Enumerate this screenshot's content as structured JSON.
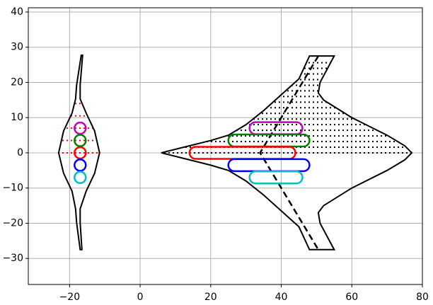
{
  "chart_data": {
    "type": "shape",
    "xlim": [
      -31.7,
      80
    ],
    "ylim": [
      -37.4,
      41.2
    ],
    "xticks": [
      {
        "value": -20,
        "label": "−20"
      },
      0,
      20,
      40,
      60,
      80
    ],
    "yticks": [
      {
        "value": -30,
        "label": "−30"
      },
      {
        "value": -20,
        "label": "−20"
      },
      {
        "value": -10,
        "label": "−10"
      },
      0,
      10,
      20,
      30,
      40
    ],
    "grid": true,
    "polygons": [
      {
        "color": "#000000",
        "hatch_color": "#ff0000",
        "hatch_y": [
          0,
          3.5,
          7,
          10.5,
          14
        ],
        "x": [
          -16.7,
          -18,
          -18.3,
          -19.3,
          -21.7,
          -23.1,
          -21.7,
          -19.3,
          -18.3,
          -18,
          -17,
          -16.5,
          -17,
          -17,
          -15.3,
          -12.9,
          -11.5,
          -12.9,
          -15.3,
          -17,
          -17,
          -16.3
        ],
        "y": [
          27.7,
          19.3,
          15.3,
          11.3,
          6.2,
          0,
          -5.8,
          -10.9,
          -15.9,
          -19.9,
          -27.5,
          -27.5,
          -19.9,
          -15.9,
          -10.9,
          -5.8,
          0,
          6.2,
          11.3,
          15.3,
          19.3,
          27.7
        ]
      },
      {
        "color": "#000000",
        "hatch_color": "#000000",
        "hatch_y": [
          0,
          1.6,
          3.2,
          4.8,
          6.4,
          8,
          9.6,
          11.2,
          12.8,
          14.4,
          16,
          17.6,
          19.2,
          20.8,
          22.4,
          24,
          25.6
        ],
        "x": [
          6,
          20,
          25,
          30,
          35,
          40,
          45,
          48,
          55,
          51,
          50.5,
          52,
          60,
          70,
          75,
          77,
          75,
          70,
          60,
          52,
          50.5,
          51,
          55,
          48,
          45,
          40,
          35,
          30,
          25,
          20
        ],
        "y": [
          0,
          3.5,
          5,
          8,
          12,
          16.5,
          21,
          27.5,
          27.5,
          20,
          17,
          15,
          10,
          5,
          2,
          0,
          -2,
          -5,
          -10,
          -15,
          -17,
          -20,
          -27.5,
          -27.5,
          -21,
          -16.5,
          -12,
          -8,
          -5,
          -3.5
        ]
      }
    ],
    "dashed": {
      "color": "#000000",
      "x": [
        50.5,
        34,
        50.5
      ],
      "y": [
        27.5,
        0,
        -27.5
      ]
    },
    "capsules": [
      {
        "color": "#bf00bf",
        "x": [
          31,
          46
        ],
        "y": 7
      },
      {
        "color": "#008000",
        "x": [
          25,
          48
        ],
        "y": 3.5
      },
      {
        "color": "#ff0000",
        "x": [
          14,
          44
        ],
        "y": 0
      },
      {
        "color": "#0000ff",
        "x": [
          25,
          48
        ],
        "y": -3.5
      },
      {
        "color": "#00bfbf",
        "x": [
          31,
          46
        ],
        "y": -7
      }
    ],
    "circles": {
      "x": [
        -17,
        -17,
        -17,
        -17,
        -17
      ],
      "y": [
        7,
        3.5,
        0,
        -3.5,
        -7
      ],
      "colors": [
        "#bf00bf",
        "#008000",
        "#ff0000",
        "#0000ff",
        "#00bfbf"
      ]
    }
  }
}
